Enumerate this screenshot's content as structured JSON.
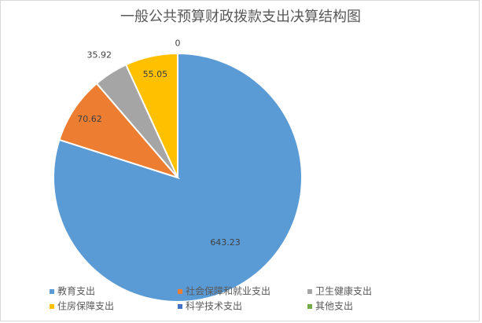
{
  "chart_data": {
    "type": "pie",
    "title": "一般公共预算财政拨款支出决算结构图",
    "categories": [
      "教育支出",
      "社会保障和就业支出",
      "卫生健康支出",
      "住房保障支出",
      "科学技术支出",
      "其他支出"
    ],
    "values": [
      643.23,
      70.62,
      35.92,
      55.05,
      0,
      null
    ],
    "colors": [
      "#5b9bd5",
      "#ed7d31",
      "#a5a5a5",
      "#ffc000",
      "#4472c4",
      "#70ad47"
    ],
    "legend": "bottom"
  }
}
